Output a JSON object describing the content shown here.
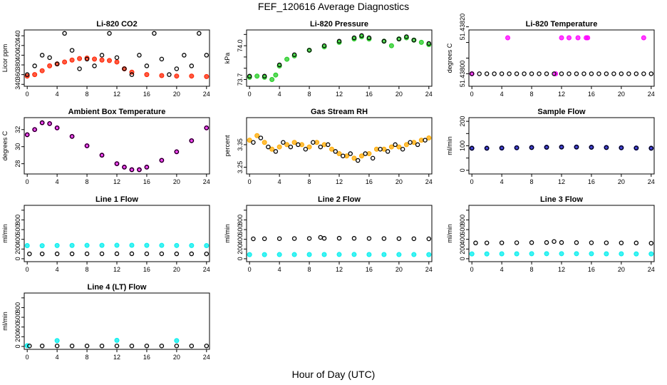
{
  "page": {
    "title": "FEF_120616  Average Diagnostics",
    "xlabel": "Hour of Day (UTC)"
  },
  "chart_data": [
    {
      "type": "scatter",
      "title": "Li-820 CO2",
      "ylabel": "Licor ppm",
      "xlim": [
        -0.4,
        24.4
      ],
      "ylim": [
        336,
        452
      ],
      "xticks": [
        0,
        4,
        8,
        12,
        16,
        20,
        24
      ],
      "yticks": [
        340,
        360,
        380,
        400,
        420,
        440
      ],
      "grid": false,
      "series": [
        {
          "color": "#ff2200",
          "kind": "filled",
          "x": [
            0,
            1,
            2,
            3,
            4,
            5,
            6,
            7,
            8,
            9,
            10,
            11,
            12,
            13,
            14,
            16,
            18,
            20,
            22,
            24
          ],
          "y": [
            357,
            360,
            368,
            378,
            382,
            386,
            390,
            393,
            394,
            392,
            390,
            389,
            386,
            372,
            365,
            360,
            358,
            357,
            357,
            356
          ]
        },
        {
          "color": "#000000",
          "kind": "open",
          "x": [
            0,
            1,
            2,
            3,
            4,
            5,
            6,
            7,
            8,
            9,
            10,
            11,
            12,
            13,
            14,
            15,
            16,
            17,
            18,
            19,
            20,
            21,
            22,
            23,
            24
          ],
          "y": [
            360,
            378,
            400,
            395,
            382,
            445,
            410,
            372,
            392,
            378,
            400,
            445,
            395,
            372,
            360,
            400,
            378,
            445,
            392,
            360,
            372,
            400,
            378,
            445,
            400
          ]
        }
      ]
    },
    {
      "type": "scatter",
      "title": "Li-820 Pressure",
      "ylabel": "kPa",
      "xlim": [
        -0.4,
        24.4
      ],
      "ylim": [
        73.64,
        74.14
      ],
      "xticks": [
        0,
        4,
        8,
        12,
        16,
        20,
        24
      ],
      "yticks": [
        73.7,
        73.8,
        73.9,
        74.0,
        74.1
      ],
      "ytick_labels": [
        "73.7",
        "",
        "",
        "74.0",
        ""
      ],
      "grid": false,
      "series": [
        {
          "color": "#22cc22",
          "kind": "filled",
          "x": [
            0,
            1,
            2,
            3,
            3.5,
            4,
            5,
            6,
            8,
            10,
            12,
            14,
            15,
            16,
            18,
            19,
            20,
            21,
            22,
            23,
            24
          ],
          "y": [
            73.72,
            73.73,
            73.72,
            73.7,
            73.74,
            73.82,
            73.88,
            73.91,
            73.96,
            73.99,
            74.03,
            74.06,
            74.08,
            74.06,
            74.04,
            74.0,
            74.06,
            74.07,
            74.05,
            74.03,
            74.01
          ]
        },
        {
          "color": "#000000",
          "kind": "open",
          "x": [
            0,
            2,
            4,
            6,
            8,
            10,
            12,
            14,
            15,
            16,
            18,
            20,
            21,
            22,
            24
          ],
          "y": [
            73.73,
            73.73,
            73.83,
            73.92,
            73.96,
            74.0,
            74.04,
            74.07,
            74.09,
            74.07,
            74.04,
            74.06,
            74.08,
            74.05,
            74.02
          ]
        }
      ]
    },
    {
      "type": "scatter",
      "title": "Li-820 Temperature",
      "ylabel": "degrees C",
      "xlim": [
        -0.4,
        24.4
      ],
      "ylim": [
        51.43792,
        51.43828
      ],
      "xticks": [
        0,
        4,
        8,
        12,
        16,
        20,
        24
      ],
      "yticks": [
        51.438,
        51.4381,
        51.4382,
        51.4383
      ],
      "ytick_labels": [
        "51.43800",
        "",
        "",
        "51.43820"
      ],
      "grid": false,
      "series": [
        {
          "color": "#ff00ff",
          "kind": "filled",
          "x": [
            0,
            4.8,
            11.2,
            12,
            13,
            14.2,
            15.3,
            15.5,
            23
          ],
          "y": [
            51.438,
            51.43823,
            51.438,
            51.43823,
            51.43823,
            51.43823,
            51.43823,
            51.43823,
            51.43823
          ]
        },
        {
          "color": "#000000",
          "kind": "open",
          "x": [
            0,
            1,
            2,
            3,
            4,
            5,
            6,
            7,
            8,
            9,
            10,
            11,
            12,
            13,
            14,
            15,
            16,
            17,
            18,
            19,
            20,
            21,
            22,
            23,
            24
          ],
          "y": [
            51.438,
            51.438,
            51.438,
            51.438,
            51.438,
            51.438,
            51.438,
            51.438,
            51.438,
            51.438,
            51.438,
            51.438,
            51.438,
            51.438,
            51.438,
            51.438,
            51.438,
            51.438,
            51.438,
            51.438,
            51.438,
            51.438,
            51.438,
            51.438,
            51.438
          ]
        }
      ]
    },
    {
      "type": "scatter",
      "title": "Ambient Box Temperature",
      "ylabel": "degrees C",
      "xlim": [
        -0.4,
        24.4
      ],
      "ylim": [
        26.8,
        33.4
      ],
      "xticks": [
        0,
        4,
        8,
        12,
        16,
        20,
        24
      ],
      "yticks": [
        28,
        30,
        32
      ],
      "grid": false,
      "series": [
        {
          "color": "#ff00ff",
          "kind": "filled",
          "x": [
            0,
            1,
            2,
            3,
            4,
            6,
            8,
            10,
            12,
            13,
            14,
            15,
            16,
            18,
            20,
            22,
            24
          ],
          "y": [
            31.4,
            32.0,
            32.8,
            32.7,
            32.2,
            31.2,
            30.1,
            29.0,
            28.0,
            27.6,
            27.3,
            27.3,
            27.6,
            28.4,
            29.4,
            30.7,
            32.2
          ]
        },
        {
          "color": "#000000",
          "kind": "open",
          "x": [
            0,
            1,
            2,
            3,
            4,
            6,
            8,
            10,
            12,
            13,
            14,
            15,
            16,
            18,
            20,
            22,
            24
          ],
          "y": [
            31.4,
            32.0,
            32.8,
            32.7,
            32.2,
            31.2,
            30.1,
            29.0,
            28.0,
            27.6,
            27.3,
            27.3,
            27.6,
            28.4,
            29.4,
            30.7,
            32.2
          ]
        }
      ]
    },
    {
      "type": "scatter",
      "title": "Gas Stream RH",
      "ylabel": "percent",
      "xlim": [
        -0.4,
        24.4
      ],
      "ylim": [
        3.22,
        3.47
      ],
      "xticks": [
        0,
        4,
        8,
        12,
        16,
        20,
        24
      ],
      "yticks": [
        3.25,
        3.35
      ],
      "grid": false,
      "series": [
        {
          "color": "#ffaa00",
          "kind": "filled",
          "x": [
            0,
            1,
            2,
            3,
            4,
            5,
            6,
            7,
            8,
            9,
            10,
            11,
            12,
            13,
            14,
            15,
            16,
            17,
            18,
            19,
            20,
            21,
            22,
            23,
            24
          ],
          "y": [
            3.37,
            3.39,
            3.36,
            3.33,
            3.34,
            3.35,
            3.36,
            3.35,
            3.34,
            3.36,
            3.35,
            3.33,
            3.31,
            3.3,
            3.29,
            3.3,
            3.31,
            3.33,
            3.33,
            3.34,
            3.34,
            3.35,
            3.36,
            3.37,
            3.38
          ]
        },
        {
          "color": "#000000",
          "kind": "open",
          "x": [
            0.5,
            1.5,
            2.5,
            3.5,
            4.5,
            5.5,
            6.5,
            7.5,
            8.5,
            9.5,
            10.5,
            11.5,
            12.5,
            13.5,
            14.5,
            15.5,
            16.5,
            17.5,
            18.5,
            19.5,
            20.5,
            21.5,
            22.5,
            23.5
          ],
          "y": [
            3.36,
            3.38,
            3.34,
            3.32,
            3.36,
            3.34,
            3.35,
            3.33,
            3.36,
            3.34,
            3.35,
            3.32,
            3.3,
            3.31,
            3.28,
            3.31,
            3.29,
            3.33,
            3.32,
            3.35,
            3.33,
            3.36,
            3.35,
            3.37
          ]
        }
      ]
    },
    {
      "type": "scatter",
      "title": "Sample Flow",
      "ylabel": "ml/min",
      "xlim": [
        -0.4,
        24.4
      ],
      "ylim": [
        -15,
        215
      ],
      "xticks": [
        0,
        4,
        8,
        12,
        16,
        20,
        24
      ],
      "yticks": [
        0,
        50,
        100,
        150,
        200
      ],
      "ytick_labels": [
        "0",
        "",
        "100",
        "",
        "200"
      ],
      "grid": false,
      "series": [
        {
          "color": "#0000cc",
          "kind": "filled",
          "x": [
            0,
            2,
            4,
            6,
            8,
            10,
            12,
            14,
            16,
            18,
            20,
            22,
            24
          ],
          "y": [
            90,
            90,
            91,
            92,
            93,
            94,
            95,
            95,
            94,
            93,
            92,
            91,
            90
          ]
        },
        {
          "color": "#000000",
          "kind": "open",
          "x": [
            0,
            2,
            4,
            6,
            8,
            10,
            12,
            14,
            16,
            18,
            20,
            22,
            24
          ],
          "y": [
            90,
            90,
            91,
            92,
            93,
            94,
            95,
            95,
            94,
            93,
            92,
            91,
            90
          ]
        }
      ]
    },
    {
      "type": "scatter",
      "title": "Line 1 Flow",
      "ylabel": "ml/min",
      "xlim": [
        -0.4,
        24.4
      ],
      "ylim": [
        -60,
        1100
      ],
      "xticks": [
        0,
        4,
        8,
        12,
        16,
        20,
        24
      ],
      "yticks": [
        0,
        200,
        400,
        600,
        800,
        1000
      ],
      "ytick_labels": [
        "0",
        "200",
        "400",
        "600",
        "800",
        ""
      ],
      "grid": false,
      "series": [
        {
          "color": "#00eeee",
          "kind": "filled",
          "x": [
            0,
            2,
            4,
            6,
            8,
            10,
            12,
            14,
            16,
            18,
            20,
            22,
            24
          ],
          "y": [
            270,
            268,
            272,
            274,
            275,
            276,
            277,
            278,
            276,
            275,
            273,
            272,
            270
          ]
        },
        {
          "color": "#000000",
          "kind": "open",
          "x": [
            0.3,
            2,
            4,
            6,
            8,
            10,
            12,
            14,
            16,
            18,
            20,
            22,
            24
          ],
          "y": [
            100,
            100,
            101,
            101,
            102,
            102,
            103,
            103,
            102,
            102,
            101,
            101,
            100
          ]
        }
      ]
    },
    {
      "type": "scatter",
      "title": "Line 2 Flow",
      "ylabel": "ml/min",
      "xlim": [
        -0.4,
        24.4
      ],
      "ylim": [
        -60,
        1100
      ],
      "xticks": [
        0,
        4,
        8,
        12,
        16,
        20,
        24
      ],
      "yticks": [
        0,
        200,
        400,
        600,
        800,
        1000
      ],
      "ytick_labels": [
        "0",
        "200",
        "400",
        "600",
        "800",
        ""
      ],
      "grid": false,
      "series": [
        {
          "color": "#00eeee",
          "kind": "filled",
          "x": [
            0,
            2,
            4,
            6,
            8,
            10,
            12,
            14,
            16,
            18,
            20,
            22,
            24
          ],
          "y": [
            85,
            85,
            86,
            86,
            87,
            87,
            88,
            88,
            87,
            87,
            86,
            86,
            85
          ]
        },
        {
          "color": "#000000",
          "kind": "open",
          "x": [
            0.5,
            2,
            4,
            6,
            8,
            9.5,
            10,
            12,
            14,
            16,
            18,
            20,
            22,
            24
          ],
          "y": [
            410,
            412,
            414,
            416,
            418,
            440,
            420,
            422,
            420,
            418,
            416,
            414,
            412,
            410
          ]
        }
      ]
    },
    {
      "type": "scatter",
      "title": "Line 3 Flow",
      "ylabel": "ml/min",
      "xlim": [
        -0.4,
        24.4
      ],
      "ylim": [
        -60,
        1100
      ],
      "xticks": [
        0,
        4,
        8,
        12,
        16,
        20,
        24
      ],
      "yticks": [
        0,
        200,
        400,
        600,
        800,
        1000
      ],
      "ytick_labels": [
        "0",
        "200",
        "400",
        "600",
        "800",
        ""
      ],
      "grid": false,
      "series": [
        {
          "color": "#00eeee",
          "kind": "filled",
          "x": [
            0,
            2,
            4,
            6,
            8,
            10,
            12,
            14,
            16,
            18,
            20,
            22,
            24
          ],
          "y": [
            100,
            100,
            101,
            102,
            103,
            104,
            104,
            104,
            103,
            102,
            101,
            100,
            100
          ]
        },
        {
          "color": "#000000",
          "kind": "open",
          "x": [
            0.5,
            2,
            4,
            6,
            8,
            10,
            11,
            12,
            14,
            16,
            18,
            20,
            22,
            24
          ],
          "y": [
            325,
            326,
            328,
            330,
            332,
            334,
            355,
            334,
            332,
            330,
            328,
            326,
            325,
            320
          ]
        }
      ]
    },
    {
      "type": "scatter",
      "title": "Line 4 (LT) Flow",
      "ylabel": "ml/min",
      "xlim": [
        -0.4,
        24.4
      ],
      "ylim": [
        -60,
        1100
      ],
      "xticks": [
        0,
        4,
        8,
        12,
        16,
        20,
        24
      ],
      "yticks": [
        0,
        200,
        400,
        600,
        800,
        1000
      ],
      "ytick_labels": [
        "0",
        "200",
        "400",
        "600",
        "800",
        ""
      ],
      "grid": false,
      "series": [
        {
          "color": "#00eeee",
          "kind": "filled",
          "x": [
            0,
            4,
            12,
            20
          ],
          "y": [
            15,
            120,
            125,
            120
          ]
        },
        {
          "color": "#000000",
          "kind": "open",
          "x": [
            0.3,
            2,
            4,
            6,
            8,
            10,
            12,
            14,
            16,
            18,
            20,
            22,
            24
          ],
          "y": [
            10,
            10,
            10,
            10,
            10,
            10,
            10,
            10,
            10,
            10,
            10,
            10,
            10
          ]
        }
      ]
    }
  ]
}
